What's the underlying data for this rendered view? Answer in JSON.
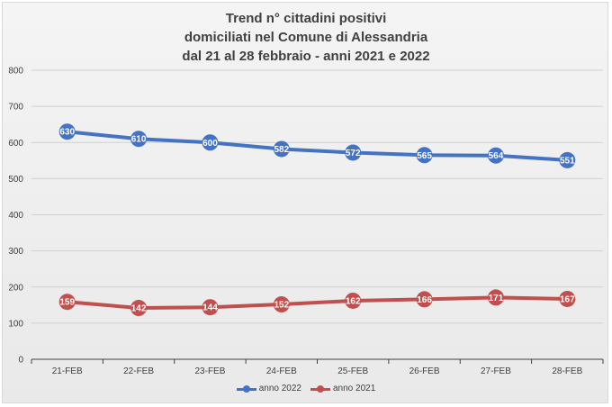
{
  "chart_data": {
    "type": "line",
    "title_lines": [
      "Trend n° cittadini positivi",
      "domiciliati nel Comune di Alessandria",
      "dal 21 al 28 febbraio - anni 2021 e 2022"
    ],
    "categories": [
      "21-FEB",
      "22-FEB",
      "23-FEB",
      "24-FEB",
      "25-FEB",
      "26-FEB",
      "27-FEB",
      "28-FEB"
    ],
    "yticks": [
      "0",
      "100",
      "200",
      "300",
      "400",
      "500",
      "600",
      "700",
      "800"
    ],
    "ylim": [
      0,
      800
    ],
    "grid": true,
    "legend_position": "bottom",
    "series": [
      {
        "name": "anno 2022",
        "color": "#4472c4",
        "values": [
          630,
          610,
          600,
          582,
          572,
          565,
          564,
          551
        ],
        "labels": [
          "630",
          "610",
          "600",
          "582",
          "572",
          "565",
          "564",
          "551"
        ]
      },
      {
        "name": "anno 2021",
        "color": "#c0504d",
        "values": [
          159,
          142,
          144,
          152,
          162,
          166,
          171,
          167
        ],
        "labels": [
          "159",
          "142",
          "144",
          "152",
          "162",
          "166",
          "171",
          "167"
        ]
      }
    ]
  }
}
